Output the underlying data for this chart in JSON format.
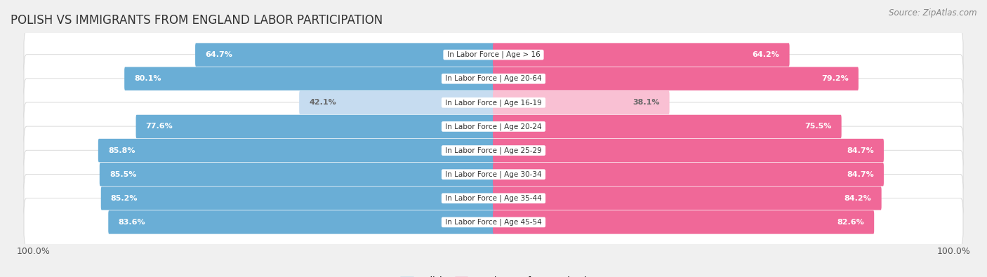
{
  "title": "Polish vs Immigrants from England Labor Participation",
  "source": "Source: ZipAtlas.com",
  "categories": [
    "In Labor Force | Age > 16",
    "In Labor Force | Age 20-64",
    "In Labor Force | Age 16-19",
    "In Labor Force | Age 20-24",
    "In Labor Force | Age 25-29",
    "In Labor Force | Age 30-34",
    "In Labor Force | Age 35-44",
    "In Labor Force | Age 45-54"
  ],
  "polish_values": [
    64.7,
    80.1,
    42.1,
    77.6,
    85.8,
    85.5,
    85.2,
    83.6
  ],
  "england_values": [
    64.2,
    79.2,
    38.1,
    75.5,
    84.7,
    84.7,
    84.2,
    82.6
  ],
  "polish_color": "#6aaed6",
  "polish_light_color": "#c6dcf0",
  "england_color": "#f06898",
  "england_light_color": "#f9c0d3",
  "bar_height": 0.68,
  "max_value": 100.0,
  "bg_color": "#f0f0f0",
  "row_bg_color": "#ffffff",
  "title_fontsize": 12,
  "source_fontsize": 8.5,
  "bar_label_fontsize": 8,
  "cat_label_fontsize": 7.5,
  "legend_fontsize": 9
}
